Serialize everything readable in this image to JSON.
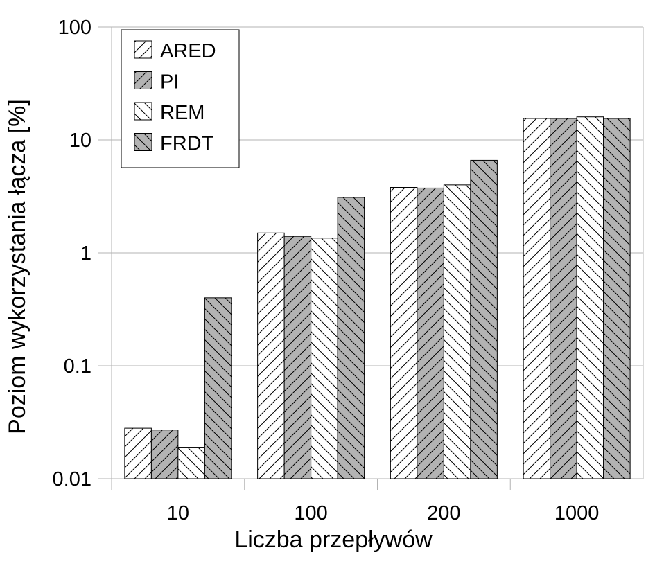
{
  "chart_data": {
    "type": "bar",
    "title": "",
    "xlabel": "Liczba przepływów",
    "ylabel": "Poziom wykorzystania łącza [%]",
    "y_scale": "log",
    "ylim": [
      0.01,
      100
    ],
    "y_ticks": [
      0.01,
      0.1,
      1,
      10,
      100
    ],
    "y_tick_labels": [
      "0.01",
      "0.1",
      "1",
      "10",
      "100"
    ],
    "grid": "horizontal",
    "legend_position": "top-left",
    "categories": [
      "10",
      "100",
      "200",
      "1000"
    ],
    "series": [
      {
        "name": "ARED",
        "values": [
          0.028,
          1.5,
          3.8,
          15.5
        ],
        "fill": "#ffffff",
        "hatch": "forward"
      },
      {
        "name": "PI",
        "values": [
          0.027,
          1.4,
          3.75,
          15.5
        ],
        "fill": "#b3b3b3",
        "hatch": "forward"
      },
      {
        "name": "REM",
        "values": [
          0.019,
          1.35,
          4.0,
          16.0
        ],
        "fill": "#ffffff",
        "hatch": "backward"
      },
      {
        "name": "FRDT",
        "values": [
          0.4,
          3.1,
          6.6,
          15.5
        ],
        "fill": "#b3b3b3",
        "hatch": "backward"
      }
    ]
  }
}
